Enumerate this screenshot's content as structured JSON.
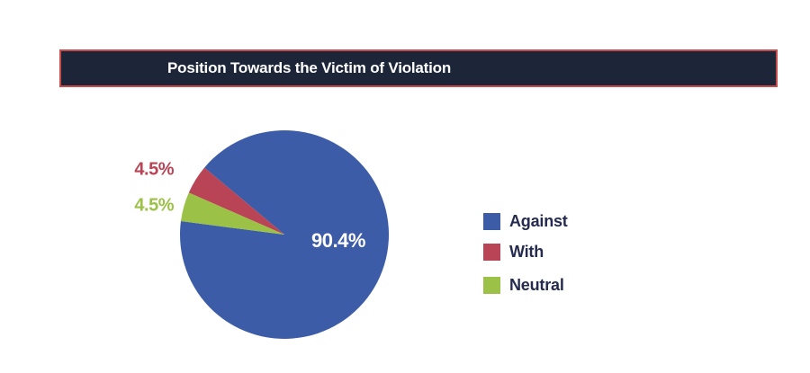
{
  "header": {
    "title": "Position Towards the Victim of Violation"
  },
  "chart_data": {
    "type": "pie",
    "title": "Position Towards the Victim of Violation",
    "slices": [
      {
        "label": "Against",
        "value": 90.4,
        "display": "90.4%",
        "color": "#3d5ca8",
        "label_color": "#ffffff",
        "label_placement": "inside"
      },
      {
        "label": "With",
        "value": 4.5,
        "display": "4.5%",
        "color": "#b94456",
        "label_color": "#b94456",
        "label_placement": "outside-left"
      },
      {
        "label": "Neutral",
        "value": 4.5,
        "display": "4.5%",
        "color": "#9bc246",
        "label_color": "#9bc246",
        "label_placement": "outside-left"
      }
    ],
    "legend_position": "right"
  },
  "style": {
    "background": "#ffffff",
    "bar_fill": "#1d2638",
    "bar_border": "#c74b4b",
    "title_color": "#ffffff",
    "legend_text_color": "#242b4e"
  }
}
